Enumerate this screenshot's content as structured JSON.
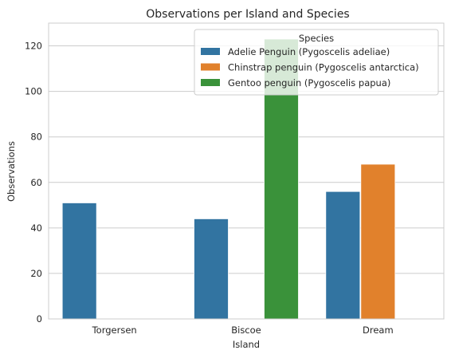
{
  "chart_data": {
    "type": "bar",
    "title": "Observations per Island and Species",
    "xlabel": "Island",
    "ylabel": "Observations",
    "categories": [
      "Torgersen",
      "Biscoe",
      "Dream"
    ],
    "ylim": [
      0,
      130
    ],
    "yticks": [
      "0",
      "20",
      "40",
      "60",
      "80",
      "100",
      "120"
    ],
    "grid": true,
    "legend_placement": "top-right",
    "legend_title": "Species",
    "series": [
      {
        "name": "Adelie Penguin (Pygoscelis adeliae)",
        "color": "#3274a1",
        "values": [
          51,
          44,
          56
        ]
      },
      {
        "name": "Chinstrap penguin (Pygoscelis antarctica)",
        "color": "#e1812c",
        "values": [
          0,
          0,
          68
        ]
      },
      {
        "name": "Gentoo penguin (Pygoscelis papua)",
        "color": "#3a923a",
        "values": [
          0,
          123,
          0
        ]
      }
    ]
  }
}
